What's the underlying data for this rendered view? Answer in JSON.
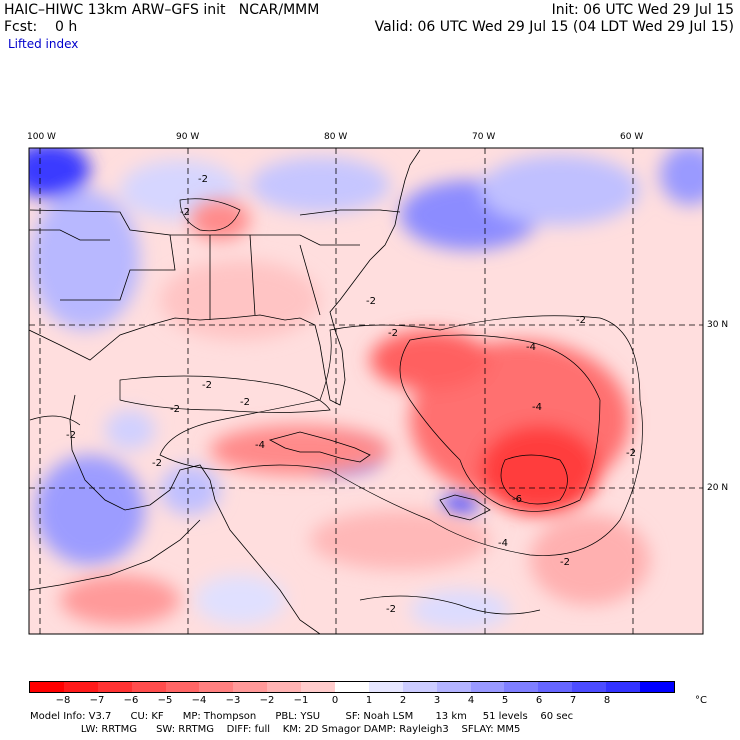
{
  "header": {
    "title": "HAIC–HIWC 13km ARW–GFS init   NCAR/MMM",
    "init": "Init: 06 UTC Wed 29 Jul 15",
    "fcst": "Fcst:    0 h",
    "valid": "Valid: 06 UTC Wed 29 Jul 15 (04 LDT Wed 29 Jul 15)",
    "field": "Lifted index"
  },
  "map": {
    "lon_labels": [
      "100 W",
      "90 W",
      "80 W",
      "70 W",
      "60 W"
    ],
    "lat_labels": [
      "30 N",
      "20 N"
    ],
    "contour_labels": [
      "-2",
      "-2",
      "-2",
      "-2",
      "-2",
      "-2",
      "-2",
      "-2",
      "-2",
      "-4",
      "-4",
      "-4",
      "-6",
      "-2",
      "-2",
      "-4",
      "-2",
      "-2"
    ]
  },
  "colorbar": {
    "labels": [
      "−8",
      "−7",
      "−6",
      "−5",
      "−4",
      "−3",
      "−2",
      "−1",
      "0",
      "1",
      "2",
      "3",
      "4",
      "5",
      "6",
      "7",
      "8"
    ],
    "unit": "°C",
    "colors": [
      "#ff0000",
      "#ff1a1a",
      "#ff3333",
      "#ff4d4d",
      "#ff6666",
      "#ff8080",
      "#ff9999",
      "#ffb3b3",
      "#ffcccc",
      "#ffffff",
      "#e6e6ff",
      "#ccccff",
      "#b3b3ff",
      "#9999ff",
      "#7f7fff",
      "#6666ff",
      "#4c4cff",
      "#3333ff",
      "#0000ff"
    ]
  },
  "footer": {
    "line1": "Model Info: V3.7      CU: KF      MP: Thompson      PBL: YSU        SF: Noah LSM       13 km     51 levels    60 sec",
    "line2": "                LW: RRTMG      SW: RRTMG    DIFF: full    KM: 2D Smagor DAMP: Rayleigh3    SFLAY: MM5"
  }
}
